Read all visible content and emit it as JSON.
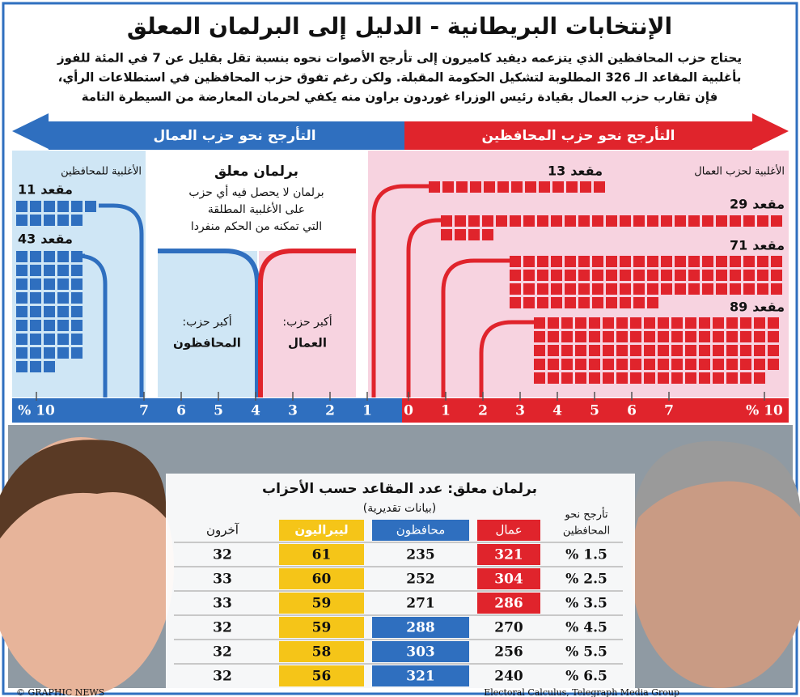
{
  "header": {
    "title": "الإنتخابات البريطانية - الدليل إلى البرلمان المعلق",
    "intro": [
      "يحتاج حزب المحافظين الذي يتزعمه ديفيد كاميرون إلى تأرجح الأصوات نحوه بنسبة تقل بقليل عن 7 في المئة للفوز",
      "بأغلبية المقاعد الـ 326 المطلوبة لتشكيل الحكومة المقبلة. ولكن رغم تفوق حزب المحافظين في استطلاعات الرأي،",
      "فإن تقارب حزب العمال بقيادة رئيس الوزراء غوردون براون منه يكفي لحرمان المعارضة من السيطرة التامة"
    ]
  },
  "arrows": {
    "left": "التأرجح نحو حزب العمال",
    "right": "التأرجح نحو حزب المحافظين"
  },
  "left_panel": {
    "label": "الأغلبية للمحافظين",
    "items": [
      {
        "seats": 11,
        "unit": "مقعد"
      },
      {
        "seats": 43,
        "unit": "مقعد"
      }
    ]
  },
  "center_panel": {
    "title": "برلمان معلق",
    "description": [
      "برلمان لا يحصل فيه أي حزب",
      "على الأغلبية المطلقة",
      "التي تمكنه من الحكم منفردا"
    ],
    "conservative": {
      "label": "أكبر حزب:",
      "party": "المحافظون"
    },
    "labour": {
      "label": "أكبر حزب:",
      "party": "العمال"
    }
  },
  "right_panel": {
    "label": "الأغلبية لحزب العمال",
    "items": [
      {
        "seats": 13,
        "unit": "مقعد"
      },
      {
        "seats": 29,
        "unit": "مقعد"
      },
      {
        "seats": 71,
        "unit": "مقعد"
      },
      {
        "seats": 89,
        "unit": "مقعد"
      }
    ]
  },
  "scale": {
    "left": [
      {
        "value": 10,
        "label": "% 10"
      },
      7,
      6,
      5,
      4,
      3,
      2,
      1
    ],
    "right": [
      0,
      1,
      2,
      3,
      4,
      5,
      6,
      7,
      {
        "value": 10,
        "label": "% 10"
      }
    ]
  },
  "table": {
    "title": "برلمان معلق: عدد المقاعد حسب الأحزاب",
    "subtitle": "(بيانات تقديرية)",
    "headers": [
      [
        "تأرجح نحو",
        "المحافظين"
      ],
      "عمال",
      "محافظون",
      "ليبراليون",
      "آخرون"
    ],
    "rows": [
      [
        "% 1.5",
        321,
        235,
        61,
        32
      ],
      [
        "% 2.5",
        304,
        252,
        60,
        33
      ],
      [
        "% 3.5",
        286,
        271,
        59,
        33
      ],
      [
        "% 4.5",
        270,
        288,
        59,
        32
      ],
      [
        "% 5.5",
        256,
        303,
        58,
        32
      ],
      [
        "% 6.5",
        240,
        321,
        56,
        32
      ]
    ]
  },
  "footer": {
    "credit": "© GRAPHIC NEWS",
    "source": "Electoral Calculus, Telegraph Media Group"
  }
}
